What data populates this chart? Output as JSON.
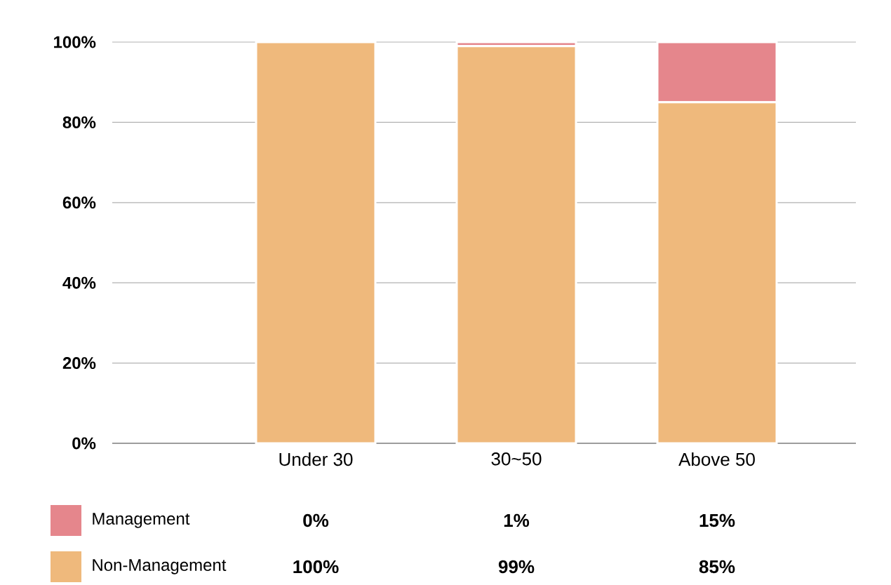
{
  "chart_data": {
    "type": "bar",
    "stacked": true,
    "categories": [
      "Under 30",
      "30~50",
      "Above 50"
    ],
    "series": [
      {
        "name": "Non-Management",
        "color": "#efb97c",
        "values": [
          100,
          99,
          85
        ],
        "value_labels": [
          "100%",
          "99%",
          "85%"
        ]
      },
      {
        "name": "Management",
        "color": "#e5868c",
        "values": [
          0,
          1,
          15
        ],
        "value_labels": [
          "0%",
          "1%",
          "15%"
        ]
      }
    ],
    "ylim": [
      0,
      100
    ],
    "yticks": [
      {
        "value": 0,
        "label": "0%"
      },
      {
        "value": 20,
        "label": "20%"
      },
      {
        "value": 40,
        "label": "40%"
      },
      {
        "value": 60,
        "label": "60%"
      },
      {
        "value": 80,
        "label": "80%"
      },
      {
        "value": 100,
        "label": "100%"
      }
    ],
    "grid": "y",
    "legend": "bottom"
  }
}
